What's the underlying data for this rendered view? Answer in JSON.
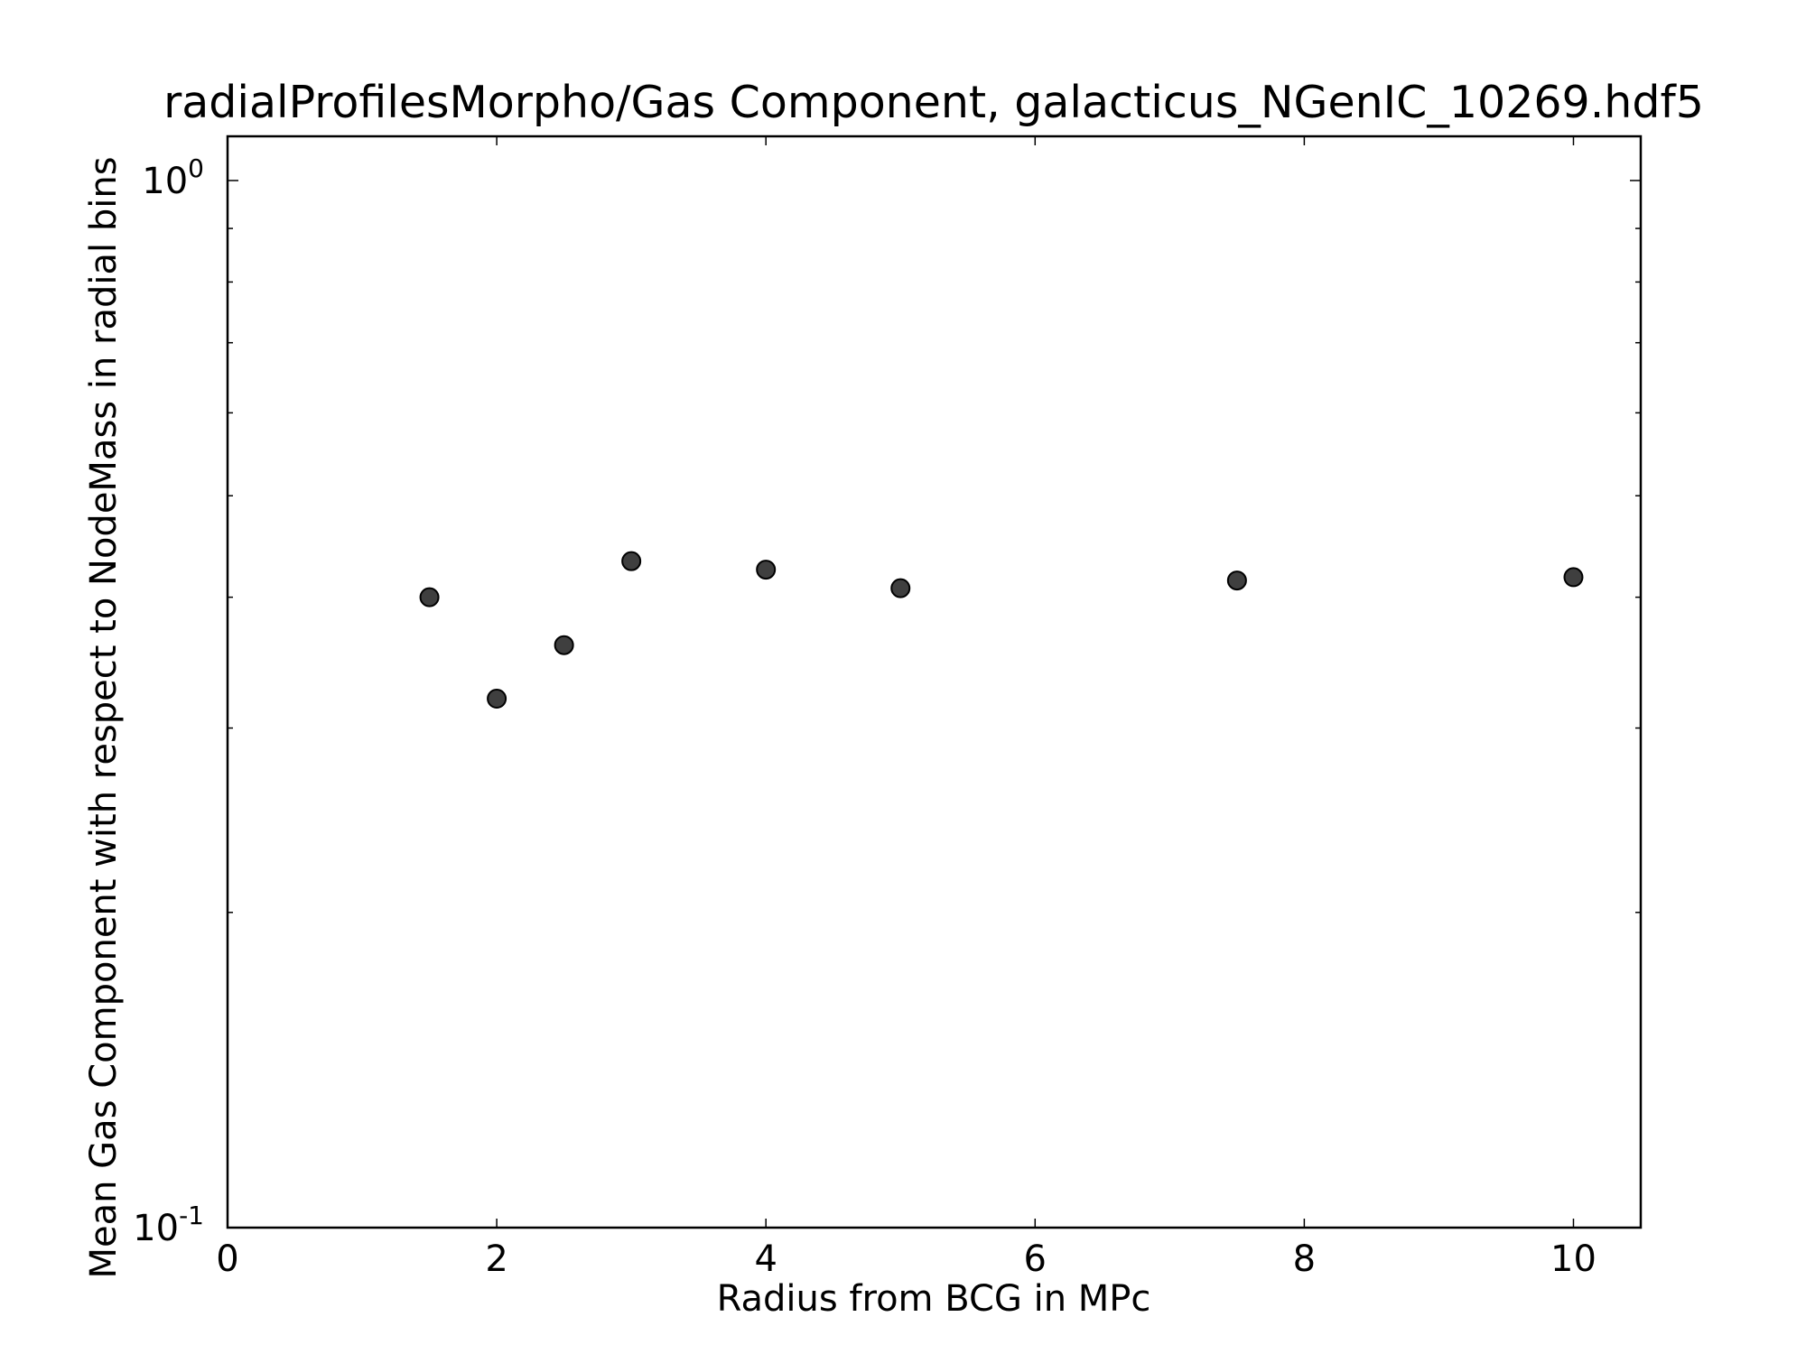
{
  "chart_data": {
    "type": "scatter",
    "title": "radialProfilesMorpho/Gas Component, galacticus_NGenIC_10269.hdf5",
    "xlabel": "Radius from BCG in MPc",
    "ylabel": "Mean Gas Component with respect to NodeMass in radial bins",
    "xlim": [
      0,
      10.5
    ],
    "ylim": [
      0.1,
      1.0
    ],
    "yscale": "log",
    "grid": false,
    "legend": "none",
    "x_ticks": [
      0,
      2,
      4,
      6,
      8,
      10
    ],
    "x_tick_labels": [
      "0",
      "2",
      "4",
      "6",
      "8",
      "10"
    ],
    "y_ticks": [
      {
        "value": 1.0,
        "base": "10",
        "exp": "0"
      },
      {
        "value": 0.1,
        "base": "10",
        "exp": "-1"
      }
    ],
    "y_minor_ticks": [
      0.2,
      0.3,
      0.4,
      0.5,
      0.6,
      0.7,
      0.8,
      0.9
    ],
    "series": [
      {
        "x": [
          1.5,
          2.0,
          2.5,
          3.0,
          4.0,
          5.0,
          7.5,
          10.0
        ],
        "y": [
          0.4,
          0.32,
          0.36,
          0.433,
          0.425,
          0.408,
          0.415,
          0.418
        ]
      }
    ],
    "marker_color": "#3f3f3f",
    "marker_edge_color": "#000000"
  }
}
